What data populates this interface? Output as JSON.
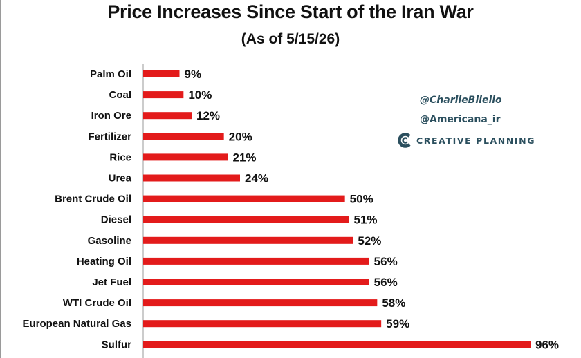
{
  "colors": {
    "bar": "#e31b1b",
    "axis": "#9a9a9a",
    "brand": "#2b4f5e"
  },
  "watermark": {
    "handle_1": "@CharlieBilello",
    "handle_2": "@Americana_ir",
    "brand_name": "CREATIVE PLANNING",
    "brand_icon": "creative-planning-logo-icon"
  },
  "chart_data": {
    "type": "bar",
    "orientation": "horizontal",
    "title": "Price Increases Since Start of the Iran War",
    "subtitle": "(As of 5/15/26)",
    "xlabel": "",
    "ylabel": "",
    "grid": false,
    "categories": [
      "Palm Oil",
      "Coal",
      "Iron Ore",
      "Fertilizer",
      "Rice",
      "Urea",
      "Brent Crude Oil",
      "Diesel",
      "Gasoline",
      "Heating Oil",
      "Jet Fuel",
      "WTI Crude Oil",
      "European Natural Gas",
      "Sulfur"
    ],
    "values": [
      9,
      10,
      12,
      20,
      21,
      24,
      50,
      51,
      52,
      56,
      56,
      58,
      59,
      96
    ],
    "value_labels": [
      "9%",
      "10%",
      "12%",
      "20%",
      "21%",
      "24%",
      "50%",
      "51%",
      "52%",
      "56%",
      "56%",
      "58%",
      "59%",
      "96%"
    ],
    "xlim": [
      0,
      100
    ]
  }
}
